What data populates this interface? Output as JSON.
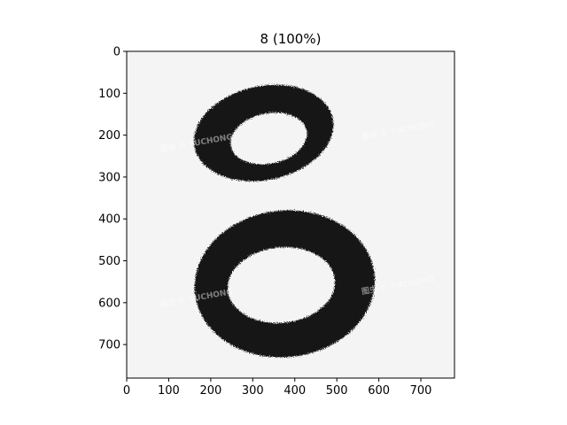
{
  "chart_data": {
    "type": "image",
    "title": "8 (100%)",
    "image_description": "grayscale brush-stroke handwritten digit 8 on light gray background",
    "image_size": [
      780,
      780
    ],
    "xlim": [
      0,
      780
    ],
    "ylim": [
      780,
      0
    ],
    "x_ticks": [
      0,
      100,
      200,
      300,
      400,
      500,
      600,
      700
    ],
    "y_ticks": [
      0,
      100,
      200,
      300,
      400,
      500,
      600,
      700
    ],
    "background_color": "#f4f4f4",
    "stroke_color": "#141414",
    "digit": {
      "upper_loop": {
        "cx": 326,
        "cy": 195,
        "rx": 168,
        "ry": 112,
        "tilt_deg": -12
      },
      "upper_hole": {
        "cx": 338,
        "cy": 208,
        "rx": 92,
        "ry": 60,
        "tilt_deg": -12
      },
      "lower_loop": {
        "cx": 376,
        "cy": 555,
        "rx": 215,
        "ry": 175,
        "tilt_deg": -6
      },
      "lower_hole": {
        "cx": 368,
        "cy": 558,
        "rx": 128,
        "ry": 90,
        "tilt_deg": -6
      }
    },
    "watermark_text": "图虫 © TUCHONG"
  }
}
